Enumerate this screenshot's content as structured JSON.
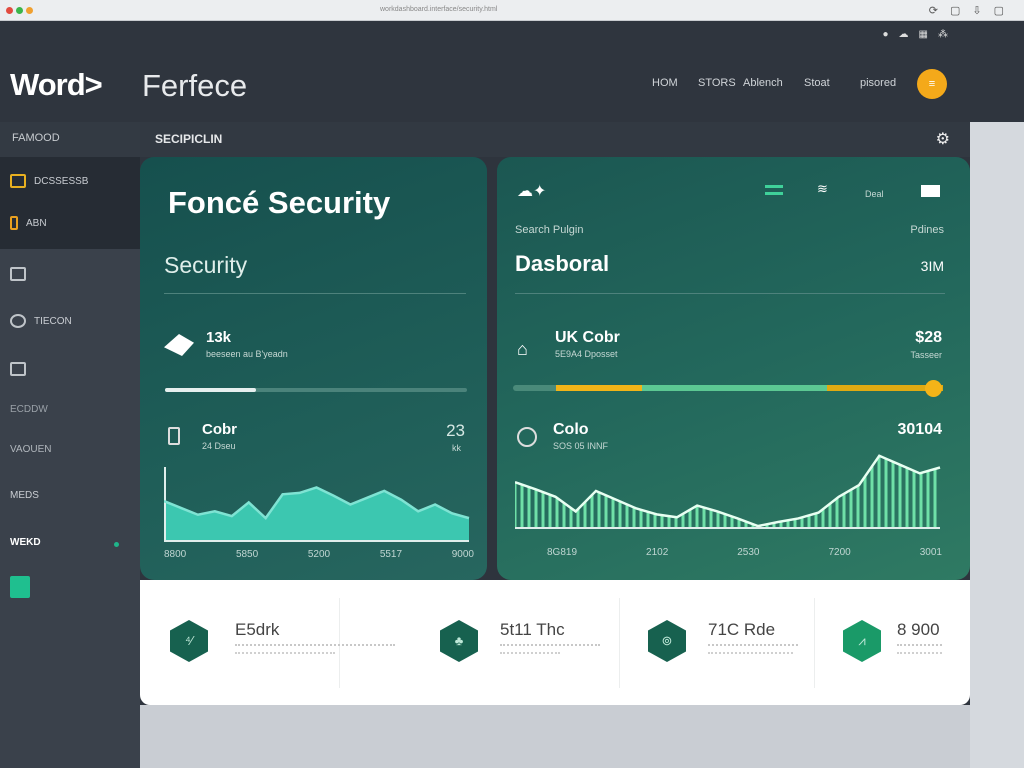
{
  "browser": {
    "url": "workdashboard.interface/security.html"
  },
  "header": {
    "logo": "Word>",
    "title": "Ferfece",
    "nav": [
      "HOM",
      "STORS",
      "Ablench",
      "Stoat",
      "pisored"
    ],
    "avatar_icon": "menu-icon"
  },
  "sidebar": {
    "title": "FAMOOD",
    "items": [
      {
        "label": "DCSSESSB",
        "icon": "folder-icon"
      },
      {
        "label": "ABN",
        "icon": "user-icon"
      },
      {
        "label": "",
        "icon": "chat-icon"
      },
      {
        "label": "TIECON",
        "icon": "badge-icon"
      },
      {
        "label": "",
        "icon": "monitor-icon"
      },
      {
        "label": "ECDDW"
      },
      {
        "label": "VAOUEN"
      },
      {
        "label": "MEDS"
      },
      {
        "label": "WEKD"
      }
    ]
  },
  "section": {
    "title": "SECIPICLIN"
  },
  "card1": {
    "title": "Foncé Security",
    "subtitle": "Security",
    "metric": {
      "value": "13k",
      "label": "beeseen au B'yeadn",
      "progress": 0.3
    },
    "chart": {
      "title": "Cobr",
      "subtitle": "24 Dseu",
      "value": "23",
      "unit": "kk",
      "ticks": [
        "8800",
        "5850",
        "5200",
        "5517",
        "9000"
      ],
      "values": [
        60,
        50,
        40,
        45,
        38,
        58,
        35,
        70,
        72,
        80,
        68,
        55,
        65,
        75,
        62,
        45,
        55,
        42,
        35
      ]
    }
  },
  "card2": {
    "top_label": "Deal",
    "label": "Search Pulgin",
    "right_label": "Pdines",
    "title": "Dasboral",
    "title_value": "3IM",
    "metric": {
      "title": "UK Cobr",
      "subtitle": "5E9A4 Dposset",
      "value": "$28",
      "value_label": "Tasseer",
      "segments": [
        "#f2b418",
        "#5cc893",
        "#e0aa12"
      ],
      "progress": 1.0
    },
    "chart": {
      "title": "Colo",
      "subtitle": "SOS 05 INNF",
      "value": "30104",
      "ticks": [
        "8G819",
        "2102",
        "2530",
        "7200",
        "3001"
      ],
      "values": [
        80,
        68,
        55,
        30,
        65,
        50,
        35,
        25,
        20,
        40,
        30,
        18,
        5,
        12,
        18,
        28,
        55,
        75,
        125,
        110,
        95,
        105
      ]
    }
  },
  "stats": [
    {
      "value": "E5drk",
      "icon": "chart-icon"
    },
    {
      "value": "5t11 Thc",
      "icon": "tree-icon"
    },
    {
      "value": "71C Rde",
      "icon": "lock-icon"
    },
    {
      "value": "8 900",
      "icon": "pulse-icon"
    }
  ],
  "colors": {
    "accent": "#f4a91a",
    "teal": "#1f5e58",
    "green": "#5cc893"
  }
}
